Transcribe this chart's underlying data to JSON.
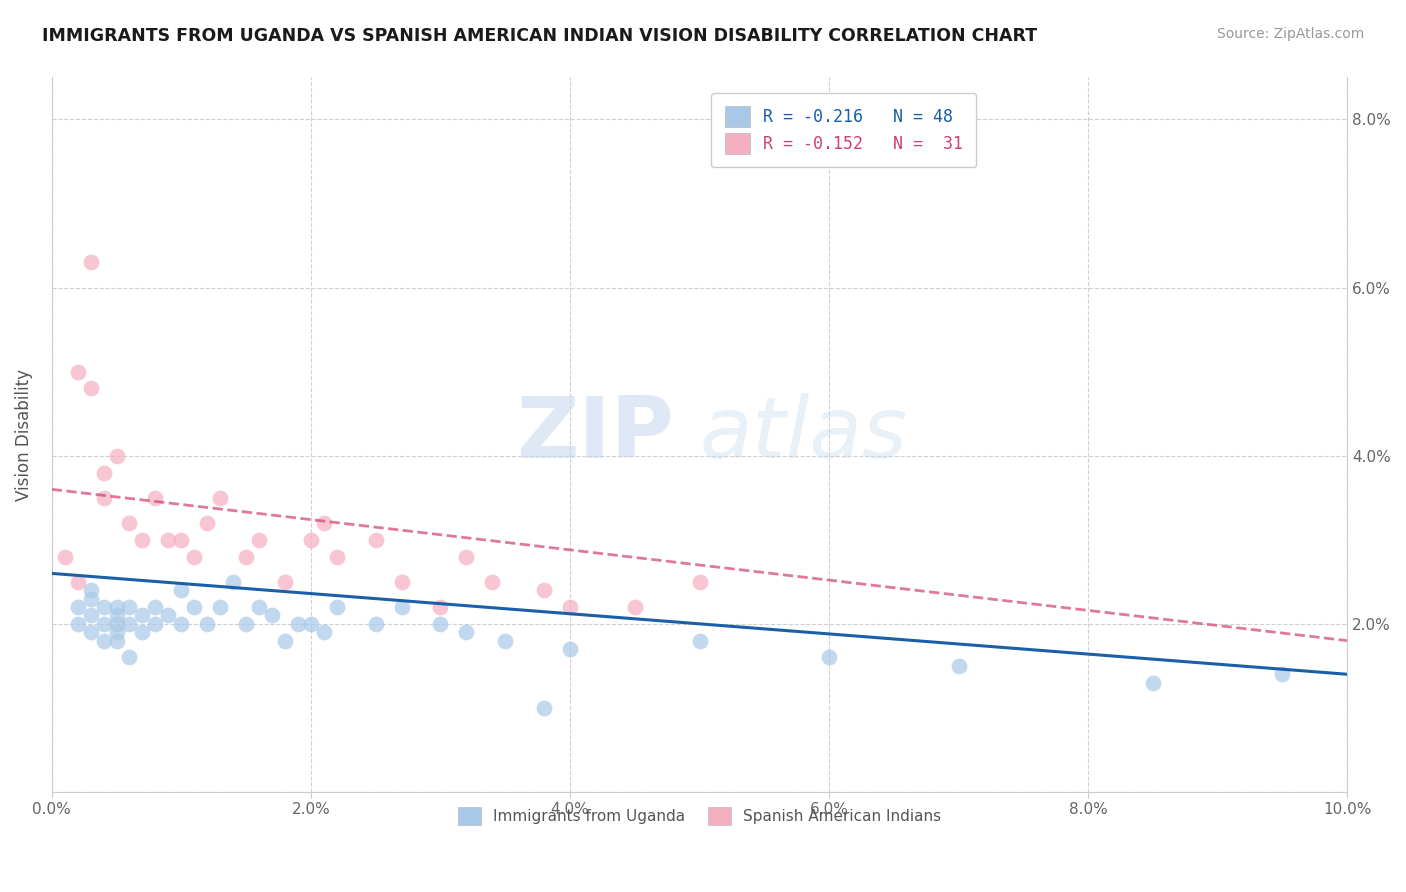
{
  "title": "IMMIGRANTS FROM UGANDA VS SPANISH AMERICAN INDIAN VISION DISABILITY CORRELATION CHART",
  "source": "Source: ZipAtlas.com",
  "ylabel": "Vision Disability",
  "legend_label1": "Immigrants from Uganda",
  "legend_label2": "Spanish American Indians",
  "r1": -0.216,
  "n1": 48,
  "r2": -0.152,
  "n2": 31,
  "color1": "#a8c8e8",
  "color2": "#f4afc0",
  "line_color1": "#1a5fa8",
  "line_color2": "#d04070",
  "xlim": [
    0.0,
    0.1
  ],
  "ylim": [
    0.0,
    0.085
  ],
  "xticks": [
    0.0,
    0.02,
    0.04,
    0.06,
    0.08,
    0.1
  ],
  "ytick_right_vals": [
    0.02,
    0.04,
    0.06,
    0.08
  ],
  "ytick_right_labels": [
    "2.0%",
    "4.0%",
    "6.0%",
    "8.0%"
  ],
  "xtick_labels": [
    "0.0%",
    "2.0%",
    "4.0%",
    "6.0%",
    "8.0%",
    "10.0%"
  ],
  "background_color": "#ffffff",
  "watermark_zip": "ZIP",
  "watermark_atlas": "atlas",
  "scatter1_x": [
    0.002,
    0.002,
    0.003,
    0.003,
    0.003,
    0.003,
    0.004,
    0.004,
    0.004,
    0.005,
    0.005,
    0.005,
    0.005,
    0.005,
    0.006,
    0.006,
    0.006,
    0.007,
    0.007,
    0.008,
    0.008,
    0.009,
    0.01,
    0.01,
    0.011,
    0.012,
    0.013,
    0.014,
    0.015,
    0.016,
    0.017,
    0.018,
    0.019,
    0.02,
    0.021,
    0.022,
    0.025,
    0.027,
    0.03,
    0.032,
    0.035,
    0.038,
    0.04,
    0.05,
    0.06,
    0.07,
    0.085,
    0.095
  ],
  "scatter1_y": [
    0.022,
    0.02,
    0.021,
    0.019,
    0.024,
    0.023,
    0.02,
    0.022,
    0.018,
    0.022,
    0.021,
    0.02,
    0.018,
    0.019,
    0.022,
    0.02,
    0.016,
    0.021,
    0.019,
    0.022,
    0.02,
    0.021,
    0.02,
    0.024,
    0.022,
    0.02,
    0.022,
    0.025,
    0.02,
    0.022,
    0.021,
    0.018,
    0.02,
    0.02,
    0.019,
    0.022,
    0.02,
    0.022,
    0.02,
    0.019,
    0.018,
    0.01,
    0.017,
    0.018,
    0.016,
    0.015,
    0.013,
    0.014
  ],
  "scatter2_x": [
    0.001,
    0.002,
    0.002,
    0.003,
    0.003,
    0.004,
    0.004,
    0.005,
    0.006,
    0.007,
    0.008,
    0.009,
    0.01,
    0.011,
    0.012,
    0.013,
    0.015,
    0.016,
    0.018,
    0.02,
    0.021,
    0.022,
    0.025,
    0.027,
    0.03,
    0.032,
    0.034,
    0.038,
    0.04,
    0.045,
    0.05
  ],
  "scatter2_y": [
    0.028,
    0.025,
    0.05,
    0.048,
    0.063,
    0.035,
    0.038,
    0.04,
    0.032,
    0.03,
    0.035,
    0.03,
    0.03,
    0.028,
    0.032,
    0.035,
    0.028,
    0.03,
    0.025,
    0.03,
    0.032,
    0.028,
    0.03,
    0.025,
    0.022,
    0.028,
    0.025,
    0.024,
    0.022,
    0.022,
    0.025
  ],
  "trendline1_x": [
    0.0,
    0.1
  ],
  "trendline1_y": [
    0.026,
    0.014
  ],
  "trendline2_x": [
    0.0,
    0.1
  ],
  "trendline2_y": [
    0.036,
    0.018
  ]
}
